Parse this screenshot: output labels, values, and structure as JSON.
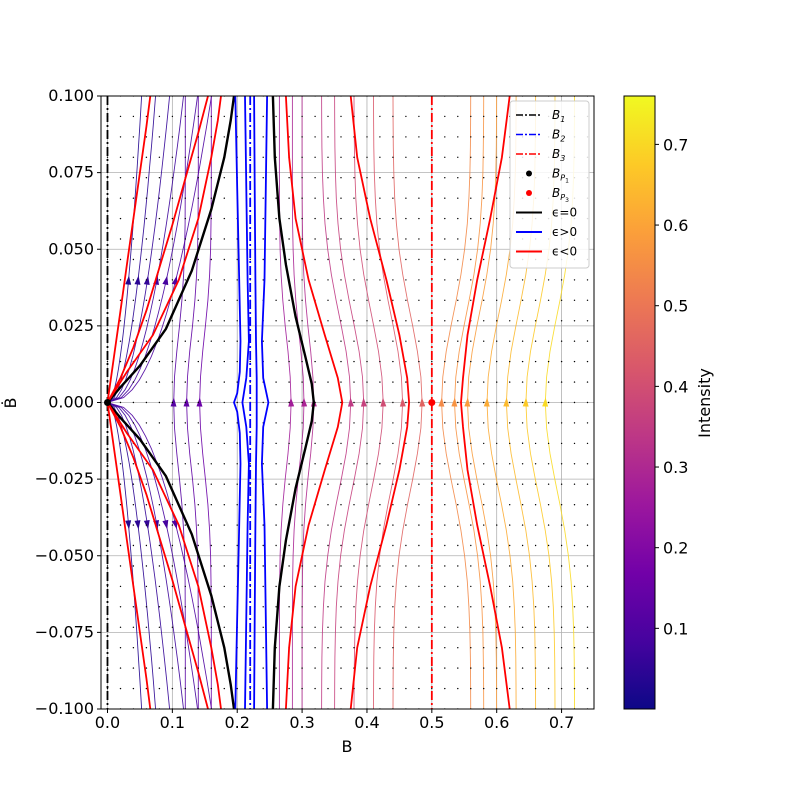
{
  "colors": {
    "vline_B1": "#000000",
    "vline_B2": "#0000ff",
    "vline_B3": "#ff0000",
    "eps_zero": "#000000",
    "eps_pos": "#0000ff",
    "eps_neg": "#ff0000",
    "grid": "#b0b0b0",
    "colormap": [
      "#0d0887",
      "#46039f",
      "#7201a8",
      "#9c179e",
      "#bd3786",
      "#d8576b",
      "#ed7953",
      "#fb9f3a",
      "#fdca26",
      "#f0f921"
    ]
  },
  "chart_data": {
    "type": "phase_portrait",
    "xlabel": "B",
    "ylabel": "Ḃ",
    "xlim": [
      -0.01,
      0.75
    ],
    "ylim": [
      -0.1,
      0.1
    ],
    "xticks": [
      0.0,
      0.1,
      0.2,
      0.3,
      0.4,
      0.5,
      0.6,
      0.7
    ],
    "xtick_labels": [
      "0.0",
      "0.1",
      "0.2",
      "0.3",
      "0.4",
      "0.5",
      "0.6",
      "0.7"
    ],
    "yticks": [
      -0.1,
      -0.075,
      -0.05,
      -0.025,
      0.0,
      0.025,
      0.05,
      0.075,
      0.1
    ],
    "ytick_labels": [
      "−0.100",
      "−0.075",
      "−0.050",
      "−0.025",
      "0.000",
      "0.025",
      "0.050",
      "0.075",
      "0.100"
    ],
    "grid": true,
    "vertical_lines": [
      {
        "name": "B_1",
        "x": 0.0,
        "style": "dashdot",
        "color": "#000000"
      },
      {
        "name": "B_2",
        "x": 0.22,
        "style": "dashdot",
        "color": "#0000ff"
      },
      {
        "name": "B_3",
        "x": 0.5,
        "style": "dashdot",
        "color": "#ff0000"
      }
    ],
    "fixed_points": [
      {
        "name": "B_P1",
        "x": 0.0,
        "y": 0.0,
        "color": "#000000"
      },
      {
        "name": "B_P3",
        "x": 0.5,
        "y": 0.0,
        "color": "#ff0000"
      }
    ],
    "trajectories": [
      {
        "name": "ϵ=0",
        "color": "#000000",
        "curves": [
          {
            "x": [
              0.0,
              0.02,
              0.05,
              0.09,
              0.13,
              0.16,
              0.18,
              0.19,
              0.195
            ],
            "y": [
              0.0,
              0.005,
              0.012,
              0.024,
              0.043,
              0.063,
              0.08,
              0.092,
              0.1
            ]
          },
          {
            "x": [
              0.0,
              0.02,
              0.05,
              0.09,
              0.13,
              0.16,
              0.18,
              0.19,
              0.195
            ],
            "y": [
              0.0,
              -0.005,
              -0.012,
              -0.024,
              -0.043,
              -0.063,
              -0.08,
              -0.092,
              -0.1
            ]
          },
          {
            "x": [
              0.255,
              0.258,
              0.265,
              0.275,
              0.29,
              0.305,
              0.315,
              0.318,
              0.315,
              0.305,
              0.29,
              0.275,
              0.265,
              0.258,
              0.255
            ],
            "y": [
              0.1,
              0.08,
              0.06,
              0.045,
              0.028,
              0.015,
              0.006,
              0.0,
              -0.006,
              -0.015,
              -0.028,
              -0.045,
              -0.06,
              -0.08,
              -0.1
            ]
          }
        ]
      },
      {
        "name": "ϵ>0",
        "color": "#0000ff",
        "curves": [
          {
            "x": [
              0.197,
              0.2,
              0.203,
              0.205,
              0.204,
              0.2,
              0.195,
              0.2,
              0.204,
              0.205,
              0.203,
              0.2,
              0.197
            ],
            "y": [
              0.1,
              0.07,
              0.04,
              0.02,
              0.01,
              0.003,
              0.0,
              -0.003,
              -0.01,
              -0.02,
              -0.04,
              -0.07,
              -0.1
            ]
          },
          {
            "x": [
              0.212,
              0.214,
              0.216,
              0.218,
              0.214,
              0.208,
              0.214,
              0.218,
              0.216,
              0.214,
              0.212
            ],
            "y": [
              0.1,
              0.07,
              0.04,
              0.02,
              0.008,
              0.0,
              -0.008,
              -0.02,
              -0.04,
              -0.07,
              -0.1
            ]
          },
          {
            "x": [
              0.226,
              0.227,
              0.228,
              0.229,
              0.23,
              0.23,
              0.23,
              0.229,
              0.228,
              0.227,
              0.226
            ],
            "y": [
              0.1,
              0.07,
              0.04,
              0.02,
              0.008,
              0.0,
              -0.008,
              -0.02,
              -0.04,
              -0.07,
              -0.1
            ]
          },
          {
            "x": [
              0.246,
              0.244,
              0.242,
              0.238,
              0.24,
              0.248,
              0.24,
              0.238,
              0.242,
              0.244,
              0.246
            ],
            "y": [
              0.1,
              0.07,
              0.04,
              0.02,
              0.008,
              0.0,
              -0.008,
              -0.02,
              -0.04,
              -0.07,
              -0.1
            ]
          }
        ]
      },
      {
        "name": "ϵ<0",
        "color": "#ff0000",
        "curves": [
          {
            "x": [
              0.0,
              0.02,
              0.04,
              0.06,
              0.08,
              0.1,
              0.12,
              0.14,
              0.155
            ],
            "y": [
              0.0,
              0.008,
              0.018,
              0.03,
              0.044,
              0.058,
              0.073,
              0.088,
              0.1
            ]
          },
          {
            "x": [
              0.0,
              0.02,
              0.04,
              0.06,
              0.08,
              0.1,
              0.12,
              0.14,
              0.155
            ],
            "y": [
              0.0,
              -0.008,
              -0.018,
              -0.03,
              -0.044,
              -0.058,
              -0.073,
              -0.088,
              -0.1
            ]
          },
          {
            "x": [
              0.0,
              0.01,
              0.02,
              0.03,
              0.04,
              0.05,
              0.06,
              0.066
            ],
            "y": [
              0.0,
              0.015,
              0.03,
              0.045,
              0.06,
              0.075,
              0.09,
              0.1
            ]
          },
          {
            "x": [
              0.0,
              0.01,
              0.02,
              0.03,
              0.04,
              0.05,
              0.06,
              0.066
            ],
            "y": [
              0.0,
              -0.015,
              -0.03,
              -0.045,
              -0.06,
              -0.075,
              -0.09,
              -0.1
            ]
          },
          {
            "x": [
              0.0,
              0.03,
              0.07,
              0.11,
              0.14,
              0.16,
              0.17,
              0.175
            ],
            "y": [
              0.0,
              0.01,
              0.022,
              0.04,
              0.06,
              0.08,
              0.092,
              0.1
            ]
          },
          {
            "x": [
              0.0,
              0.03,
              0.07,
              0.11,
              0.14,
              0.16,
              0.17,
              0.175
            ],
            "y": [
              0.0,
              -0.01,
              -0.022,
              -0.04,
              -0.06,
              -0.08,
              -0.092,
              -0.1
            ]
          },
          {
            "x": [
              0.275,
              0.28,
              0.29,
              0.31,
              0.335,
              0.355,
              0.362,
              0.355,
              0.335,
              0.31,
              0.29,
              0.28,
              0.275
            ],
            "y": [
              0.1,
              0.08,
              0.06,
              0.04,
              0.022,
              0.008,
              0.0,
              -0.008,
              -0.022,
              -0.04,
              -0.06,
              -0.08,
              -0.1
            ]
          },
          {
            "x": [
              0.375,
              0.385,
              0.405,
              0.43,
              0.45,
              0.462,
              0.465,
              0.462,
              0.45,
              0.43,
              0.405,
              0.385,
              0.375
            ],
            "y": [
              0.1,
              0.08,
              0.06,
              0.04,
              0.022,
              0.008,
              0.0,
              -0.008,
              -0.022,
              -0.04,
              -0.06,
              -0.08,
              -0.1
            ]
          },
          {
            "x": [
              0.62,
              0.608,
              0.59,
              0.57,
              0.555,
              0.548,
              0.545,
              0.548,
              0.555,
              0.57,
              0.59,
              0.608,
              0.62
            ],
            "y": [
              0.1,
              0.08,
              0.06,
              0.04,
              0.022,
              0.008,
              0.0,
              -0.008,
              -0.022,
              -0.04,
              -0.06,
              -0.08,
              -0.1
            ]
          }
        ]
      }
    ],
    "legend": {
      "position": "top-right",
      "entries": [
        {
          "label_main": "B",
          "label_sub": "1",
          "style": "dashdot",
          "color": "#000000"
        },
        {
          "label_main": "B",
          "label_sub": "2",
          "style": "dashdot",
          "color": "#0000ff"
        },
        {
          "label_main": "B",
          "label_sub": "3",
          "style": "dashdot",
          "color": "#ff0000"
        },
        {
          "label_main": "B",
          "label_sub": "P",
          "label_subsub": "1",
          "style": "dot",
          "color": "#000000"
        },
        {
          "label_main": "B",
          "label_sub": "P",
          "label_subsub": "3",
          "style": "dot",
          "color": "#ff0000"
        },
        {
          "label_main": "ϵ=0",
          "style": "line",
          "color": "#000000"
        },
        {
          "label_main": "ϵ>0",
          "style": "line",
          "color": "#0000ff"
        },
        {
          "label_main": "ϵ<0",
          "style": "line",
          "color": "#ff0000"
        }
      ]
    },
    "colorbar": {
      "label": "Intensity",
      "range": [
        0.0,
        0.76
      ],
      "ticks": [
        0.1,
        0.2,
        0.3,
        0.4,
        0.5,
        0.6,
        0.7
      ],
      "tick_labels": [
        "0.1",
        "0.2",
        "0.3",
        "0.4",
        "0.5",
        "0.6",
        "0.7"
      ]
    }
  }
}
